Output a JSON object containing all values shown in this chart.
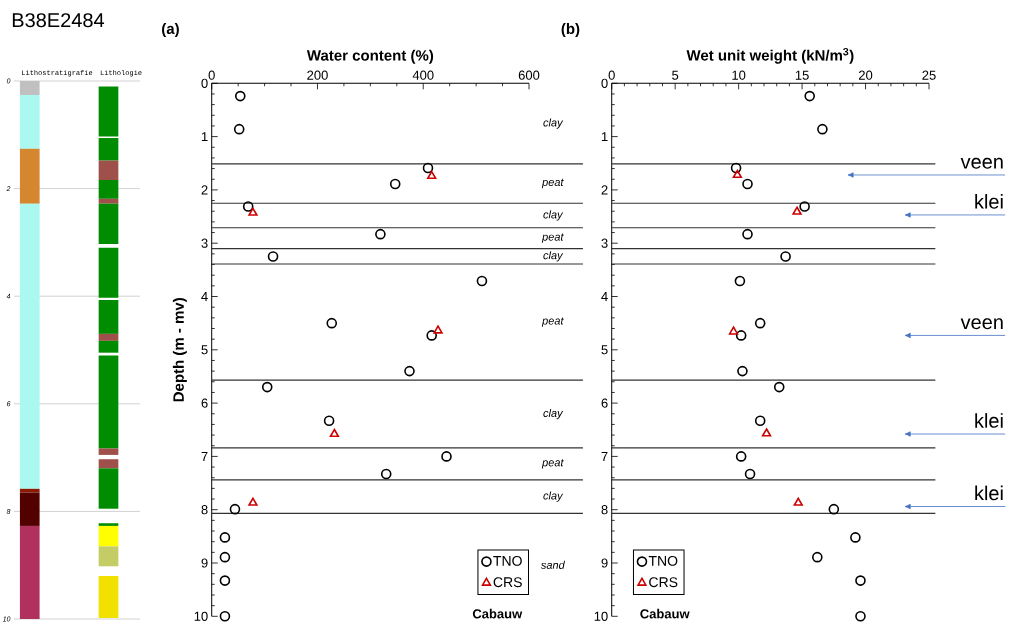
{
  "chart_data": [
    {
      "type": "bar",
      "title": "B38E2484",
      "categories": [
        "Lithostratigrafie",
        "Lithologie"
      ],
      "ylim": [
        10,
        0
      ],
      "yticks": [
        0,
        2,
        4,
        6,
        8,
        10
      ],
      "grid": "y",
      "series": [
        {
          "color": "#c0c0c0",
          "base": [
            0,
            null
          ],
          "values": [
            0.26,
            null
          ]
        },
        {
          "color": "#aaf8f0",
          "base": [
            0.26,
            null
          ],
          "values": [
            1.0,
            null
          ]
        },
        {
          "color": "#d4872f",
          "base": [
            1.26,
            null
          ],
          "values": [
            1.02,
            null
          ]
        },
        {
          "color": "#aaf8f0",
          "base": [
            2.28,
            null
          ],
          "values": [
            5.3,
            null
          ]
        },
        {
          "color": "#8b1a00",
          "base": [
            7.58,
            null
          ],
          "values": [
            0.07,
            null
          ]
        },
        {
          "color": "#520000",
          "base": [
            7.65,
            null
          ],
          "values": [
            0.62,
            null
          ]
        },
        {
          "color": "#b0305e",
          "base": [
            8.27,
            null
          ],
          "values": [
            1.73,
            null
          ]
        },
        {
          "color": "#008c00",
          "base": [
            null,
            0.1
          ],
          "values": [
            null,
            0.93
          ]
        },
        {
          "color": "#008c00",
          "base": [
            null,
            1.06
          ],
          "values": [
            null,
            0.42
          ]
        },
        {
          "color": "#a0504a",
          "base": [
            null,
            1.48
          ],
          "values": [
            null,
            0.36
          ]
        },
        {
          "color": "#008c00",
          "base": [
            null,
            1.84
          ],
          "values": [
            null,
            0.35
          ]
        },
        {
          "color": "#a0504a",
          "base": [
            null,
            2.19
          ],
          "values": [
            null,
            0.09
          ]
        },
        {
          "color": "#008c00",
          "base": [
            null,
            2.28
          ],
          "values": [
            null,
            0.75
          ]
        },
        {
          "color": "#008c00",
          "base": [
            null,
            3.1
          ],
          "values": [
            null,
            0.93
          ]
        },
        {
          "color": "#008c00",
          "base": [
            null,
            4.07
          ],
          "values": [
            null,
            0.63
          ]
        },
        {
          "color": "#a0504a",
          "base": [
            null,
            4.7
          ],
          "values": [
            null,
            0.13
          ]
        },
        {
          "color": "#008c00",
          "base": [
            null,
            4.83
          ],
          "values": [
            null,
            0.22
          ]
        },
        {
          "color": "#008c00",
          "base": [
            null,
            5.1
          ],
          "values": [
            null,
            1.73
          ]
        },
        {
          "color": "#a0504a",
          "base": [
            null,
            6.83
          ],
          "values": [
            null,
            0.12
          ]
        },
        {
          "color": "#a0504a",
          "base": [
            null,
            7.03
          ],
          "values": [
            null,
            0.17
          ]
        },
        {
          "color": "#008c00",
          "base": [
            null,
            7.2
          ],
          "values": [
            null,
            0.75
          ]
        },
        {
          "color": "#008c00",
          "base": [
            null,
            8.22
          ],
          "values": [
            null,
            0.05
          ]
        },
        {
          "color": "#ffff00",
          "base": [
            null,
            8.27
          ],
          "values": [
            null,
            0.38
          ]
        },
        {
          "color": "#c4cc66",
          "base": [
            null,
            8.65
          ],
          "values": [
            null,
            0.37
          ]
        },
        {
          "color": "#f2e000",
          "base": [
            null,
            9.2
          ],
          "values": [
            null,
            0.78
          ]
        }
      ]
    },
    {
      "type": "scatter",
      "title": "(a)",
      "xlabel": "Water content (%)",
      "ylabel": "Depth (m - mv)",
      "xlim": [
        0,
        600
      ],
      "xticks": [
        0,
        200,
        400,
        600
      ],
      "ylim": [
        10,
        0
      ],
      "yticks": [
        0,
        1,
        2,
        3,
        4,
        5,
        6,
        7,
        8,
        9,
        10
      ],
      "legend": "bottom right",
      "series": [
        {
          "name": "TNO",
          "color": "#000000",
          "marker": "circle",
          "x": [
            54,
            52,
            409,
            347,
            69,
            319,
            116,
            511,
            227,
            416,
            374,
            105,
            222,
            444,
            330,
            44,
            25,
            25,
            25,
            25
          ],
          "values": [
            0.24,
            0.86,
            1.59,
            1.89,
            2.31,
            2.83,
            3.25,
            3.71,
            4.5,
            4.73,
            5.4,
            5.7,
            6.33,
            7.0,
            7.33,
            7.99,
            8.52,
            8.89,
            9.33,
            10.0
          ]
        },
        {
          "name": "CRS",
          "color": "#cc0000",
          "marker": "triangle",
          "x": [
            416,
            78,
            428,
            232,
            78
          ],
          "values": [
            1.74,
            2.43,
            4.64,
            6.58,
            7.87
          ]
        }
      ],
      "ref_lines": [
        {
          "axis": "y",
          "value": 1.51
        },
        {
          "axis": "y",
          "value": 2.25
        },
        {
          "axis": "y",
          "value": 2.71
        },
        {
          "axis": "y",
          "value": 3.1
        },
        {
          "axis": "y",
          "value": 3.39
        },
        {
          "axis": "y",
          "value": 5.57
        },
        {
          "axis": "y",
          "value": 6.84
        },
        {
          "axis": "y",
          "value": 7.44
        },
        {
          "axis": "y",
          "value": 8.07
        }
      ],
      "annotations": [
        "clay",
        "peat",
        "clay",
        "peat",
        "clay",
        "peat",
        "clay",
        "peat",
        "clay",
        "sand",
        "Cabauw"
      ]
    },
    {
      "type": "scatter",
      "title": "(b)",
      "xlabel": "Wet unit weight (kN/m$^{3}$)",
      "xlim": [
        0,
        25
      ],
      "xticks": [
        0,
        5,
        10,
        15,
        20,
        25
      ],
      "ylim": [
        10,
        0
      ],
      "yticks": [
        0,
        1,
        2,
        3,
        4,
        5,
        6,
        7,
        8,
        9,
        10
      ],
      "legend": "bottom left",
      "series": [
        {
          "name": "TNO",
          "color": "#000000",
          "marker": "circle",
          "x": [
            15.6,
            16.6,
            9.8,
            10.7,
            15.2,
            10.7,
            13.7,
            10.1,
            11.7,
            10.2,
            10.3,
            13.2,
            11.7,
            10.2,
            10.9,
            17.5,
            19.2,
            16.2,
            19.6,
            19.6
          ],
          "values": [
            0.24,
            0.86,
            1.59,
            1.89,
            2.31,
            2.83,
            3.25,
            3.71,
            4.5,
            4.73,
            5.4,
            5.7,
            6.33,
            7.0,
            7.33,
            7.99,
            8.52,
            8.89,
            9.33,
            10.0
          ]
        },
        {
          "name": "CRS",
          "color": "#cc0000",
          "marker": "triangle",
          "x": [
            9.9,
            14.6,
            9.6,
            12.2,
            14.7
          ],
          "values": [
            1.72,
            2.41,
            4.66,
            6.57,
            7.87
          ]
        }
      ],
      "ref_lines": [
        {
          "axis": "y",
          "value": 1.51
        },
        {
          "axis": "y",
          "value": 2.25
        },
        {
          "axis": "y",
          "value": 2.71
        },
        {
          "axis": "y",
          "value": 3.1
        },
        {
          "axis": "y",
          "value": 3.39
        },
        {
          "axis": "y",
          "value": 5.57
        },
        {
          "axis": "y",
          "value": 6.84
        },
        {
          "axis": "y",
          "value": 7.44
        },
        {
          "axis": "y",
          "value": 8.07
        }
      ],
      "annotations": [
        "Cabauw",
        "veen",
        "klei",
        "veen",
        "klei",
        "klei"
      ]
    }
  ]
}
